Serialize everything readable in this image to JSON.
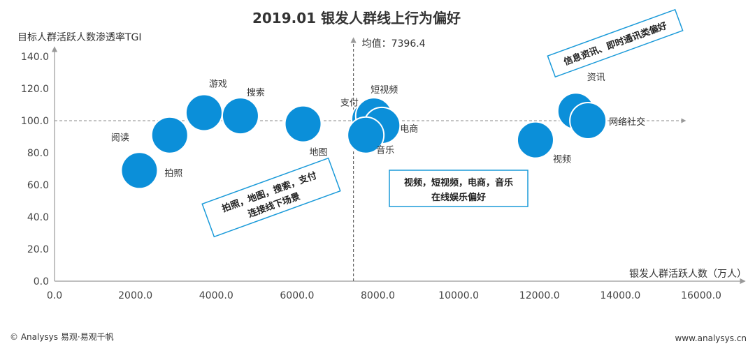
{
  "chart_data": {
    "type": "scatter",
    "title": "2019.01 银发人群线上行为偏好",
    "xlabel": "银发人群活跃人数（万人）",
    "ylabel": "目标人群活跃人数渗透率TGI",
    "xlim": [
      0,
      16000
    ],
    "ylim": [
      0,
      140
    ],
    "x_ticks": [
      "0.0",
      "2000.0",
      "4000.0",
      "6000.0",
      "8000.0",
      "10000.0",
      "12000.0",
      "14000.0",
      "16000.0"
    ],
    "y_ticks": [
      "0.0",
      "20.0",
      "40.0",
      "60.0",
      "80.0",
      "100.0",
      "120.0",
      "140.0"
    ],
    "mean_label": "均值：7396.4",
    "mean_x": 7396.4,
    "ref_y": 100,
    "point_color": "#0b8fd9",
    "points": [
      {
        "name": "拍照",
        "x": 2100,
        "y": 69
      },
      {
        "name": "阅读",
        "x": 2850,
        "y": 91
      },
      {
        "name": "游戏",
        "x": 3700,
        "y": 105
      },
      {
        "name": "搜索",
        "x": 4600,
        "y": 103
      },
      {
        "name": "地图",
        "x": 6150,
        "y": 98
      },
      {
        "name": "支付",
        "x": 7800,
        "y": 101
      },
      {
        "name": "短视频",
        "x": 7900,
        "y": 103
      },
      {
        "name": "电商",
        "x": 8100,
        "y": 97
      },
      {
        "name": "音乐",
        "x": 7700,
        "y": 91
      },
      {
        "name": "视频",
        "x": 11900,
        "y": 88
      },
      {
        "name": "资讯",
        "x": 12900,
        "y": 106
      },
      {
        "name": "网络社交",
        "x": 13200,
        "y": 100
      }
    ]
  },
  "callouts": {
    "left": [
      "拍照，地图，搜索，支付",
      "连接线下场景"
    ],
    "center": [
      "视频，短视频，电商，音乐",
      "在线娱乐偏好"
    ],
    "right": [
      "信息资讯、即时通讯类偏好"
    ]
  },
  "footer": {
    "left": "© Analysys 易观·易观千帆",
    "right": "www.analysys.cn"
  }
}
